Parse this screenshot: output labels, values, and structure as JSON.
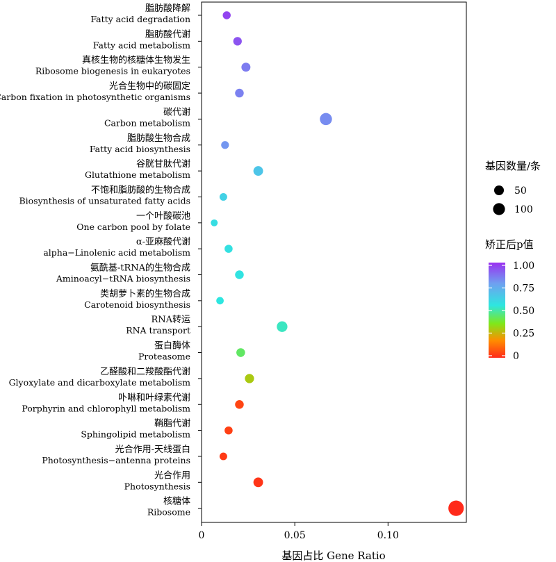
{
  "chart_data": {
    "type": "scatter",
    "title": "",
    "xlabel": "基因占比 Gene Ratio",
    "ylabel": "",
    "xlim": [
      0,
      0.142
    ],
    "xticks": [
      0,
      0.05,
      0.1
    ],
    "xtick_labels": [
      "0",
      "0.05",
      "0.10"
    ],
    "grid": false,
    "categories": [
      {
        "cn": "脂肪酸降解",
        "en": "Fatty acid degradation",
        "ratio": 0.0135,
        "count": 22,
        "p": 0.96
      },
      {
        "cn": "脂肪酸代谢",
        "en": "Fatty acid metabolism",
        "ratio": 0.0193,
        "count": 30,
        "p": 0.93
      },
      {
        "cn": "真核生物的核糖体生物发生",
        "en": "Ribosome biogenesis in eukaryotes",
        "ratio": 0.0238,
        "count": 37,
        "p": 0.85
      },
      {
        "cn": "光合生物中的碳固定",
        "en": "Carbon fixation in photosynthetic organisms",
        "ratio": 0.0203,
        "count": 32,
        "p": 0.84
      },
      {
        "cn": "碳代谢",
        "en": "Carbon metabolism",
        "ratio": 0.0667,
        "count": 105,
        "p": 0.82
      },
      {
        "cn": "脂肪酸生物合成",
        "en": "Fatty acid biosynthesis",
        "ratio": 0.0126,
        "count": 20,
        "p": 0.8
      },
      {
        "cn": "谷胱甘肽代谢",
        "en": "Glutathione metabolism",
        "ratio": 0.0304,
        "count": 48,
        "p": 0.66
      },
      {
        "cn": "不饱和脂肪酸的生物合成",
        "en": "Biosynthesis of unsaturated fatty acids",
        "ratio": 0.0117,
        "count": 18,
        "p": 0.62
      },
      {
        "cn": "一个叶酸碳池",
        "en": "One carbon pool by folate",
        "ratio": 0.0068,
        "count": 11,
        "p": 0.58
      },
      {
        "cn": "α-亚麻酸代谢",
        "en": "alpha−Linolenic acid metabolism",
        "ratio": 0.0145,
        "count": 23,
        "p": 0.57
      },
      {
        "cn": "氨酰基-tRNA的生物合成",
        "en": "Aminoacyl−tRNA biosynthesis",
        "ratio": 0.0203,
        "count": 32,
        "p": 0.56
      },
      {
        "cn": "类胡萝卜素的生物合成",
        "en": "Carotenoid biosynthesis",
        "ratio": 0.0099,
        "count": 16,
        "p": 0.55
      },
      {
        "cn": "RNA转运",
        "en": "RNA transport",
        "ratio": 0.0432,
        "count": 68,
        "p": 0.52
      },
      {
        "cn": "蛋白酶体",
        "en": "Proteasome",
        "ratio": 0.021,
        "count": 33,
        "p": 0.43
      },
      {
        "cn": "乙醛酸和二羧酸酯代谢",
        "en": "Glyoxylate and dicarboxylate metabolism",
        "ratio": 0.0257,
        "count": 40,
        "p": 0.3
      },
      {
        "cn": "卟啉和叶绿素代谢",
        "en": "Porphyrin and chlorophyll metabolism",
        "ratio": 0.0203,
        "count": 32,
        "p": 0.05
      },
      {
        "cn": "鞘脂代谢",
        "en": "Sphingolipid metabolism",
        "ratio": 0.0145,
        "count": 23,
        "p": 0.04
      },
      {
        "cn": "光合作用-天线蛋白",
        "en": "Photosynthesis−antenna proteins",
        "ratio": 0.0117,
        "count": 18,
        "p": 0.03
      },
      {
        "cn": "光合作用",
        "en": "Photosynthesis",
        "ratio": 0.0304,
        "count": 48,
        "p": 0.02
      },
      {
        "cn": "核糖体",
        "en": "Ribosome",
        "ratio": 0.1365,
        "count": 215,
        "p": 0.0
      }
    ],
    "size_legend": {
      "title": "基因数量/条",
      "values": [
        50,
        100
      ],
      "labels": [
        "50",
        "100"
      ]
    },
    "color_legend": {
      "title": "矫正后p值",
      "range": [
        0,
        1
      ],
      "ticks": [
        1.0,
        0.75,
        0.5,
        0.25,
        0
      ],
      "tick_labels": [
        "1.00",
        "0.75",
        "0.50",
        "0.25",
        "0"
      ],
      "colors": [
        "#ff2a1a",
        "#ff8c00",
        "#7fe81a",
        "#2ee6e0",
        "#6fa0f0",
        "#9a30f0"
      ]
    },
    "legend_position": "right"
  }
}
